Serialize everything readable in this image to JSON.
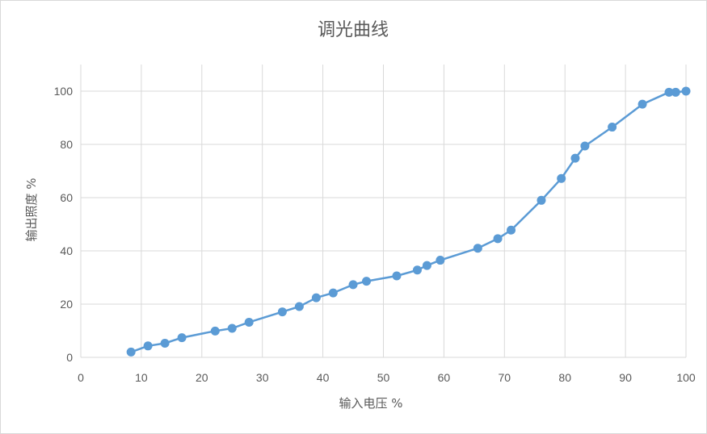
{
  "chart_data": {
    "type": "scatter",
    "title": "调光曲线",
    "xlabel": "输入电压 %",
    "ylabel": "输出照度 %",
    "xlim": [
      0,
      100
    ],
    "ylim": [
      0,
      110
    ],
    "xticks": [
      0,
      10,
      20,
      30,
      40,
      50,
      60,
      70,
      80,
      90,
      100
    ],
    "yticks": [
      0,
      20,
      40,
      60,
      80,
      100
    ],
    "grid": true,
    "legend": "none",
    "series_color": "#5b9bd5",
    "grid_color": "#d9d9d9",
    "series": [
      {
        "x": [
          8.3,
          11.1,
          13.9,
          16.7,
          22.2,
          25.0,
          27.8,
          33.3,
          36.1,
          38.9,
          41.7,
          45.0,
          47.2,
          52.2,
          55.6,
          57.2,
          59.4,
          65.6,
          68.9,
          71.1,
          76.1,
          79.4,
          81.7,
          83.3,
          87.8,
          92.8,
          97.2,
          98.3,
          100.0
        ],
        "y": [
          2.0,
          4.3,
          5.3,
          7.4,
          9.9,
          10.9,
          13.2,
          17.1,
          19.1,
          22.4,
          24.2,
          27.3,
          28.6,
          30.6,
          32.8,
          34.5,
          36.5,
          41.0,
          44.6,
          47.8,
          59.0,
          67.2,
          74.8,
          79.4,
          86.5,
          95.1,
          99.6,
          99.6,
          100.0
        ]
      }
    ]
  }
}
